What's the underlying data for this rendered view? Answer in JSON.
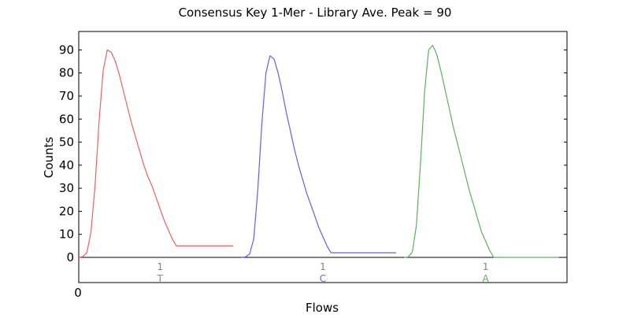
{
  "chart_data": {
    "type": "line",
    "title": "Consensus Key 1-Mer - Library Ave. Peak = 90",
    "xlabel": "Flows",
    "ylabel": "Counts",
    "x_tick_label": "0",
    "ylim": [
      0,
      98
    ],
    "yticks": [
      0,
      10,
      20,
      30,
      40,
      50,
      60,
      70,
      80,
      90
    ],
    "grid": false,
    "legend": "none",
    "flows": [
      {
        "count": "1",
        "base": "T",
        "color": "#f06060"
      },
      {
        "count": "1",
        "base": "C",
        "color": "#6060f0"
      },
      {
        "count": "1",
        "base": "A",
        "color": "#60b060"
      }
    ],
    "series": [
      {
        "color": "#f06060",
        "x": [
          0.0,
          0.05,
          0.1,
          0.15,
          0.2,
          0.25,
          0.3,
          0.35,
          0.4,
          0.45,
          0.5,
          0.55,
          0.6,
          0.65,
          0.7,
          0.75,
          0.8,
          0.85,
          0.9,
          0.95,
          1.0,
          1.05,
          1.1,
          1.15,
          1.2,
          1.25,
          1.3,
          1.35,
          1.4,
          1.45,
          1.5,
          1.55,
          1.6,
          1.65,
          1.7,
          1.75,
          1.8,
          1.85,
          1.9
        ],
        "y": [
          0,
          0.3,
          2,
          11,
          31,
          59,
          81,
          90,
          89,
          85,
          79,
          72,
          65,
          58,
          52,
          46,
          40,
          35,
          31,
          26,
          21,
          16,
          12,
          8,
          5,
          5,
          5,
          5,
          5,
          5,
          5,
          5,
          5,
          5,
          5,
          5,
          5,
          5,
          5
        ]
      },
      {
        "color": "#6060f0",
        "x": [
          2.0,
          2.05,
          2.1,
          2.15,
          2.2,
          2.25,
          2.3,
          2.35,
          2.4,
          2.45,
          2.5,
          2.55,
          2.6,
          2.65,
          2.7,
          2.75,
          2.8,
          2.85,
          2.9,
          2.95,
          3.0,
          3.05,
          3.1,
          3.15,
          3.2,
          3.25,
          3.3,
          3.35,
          3.4,
          3.45,
          3.5,
          3.55,
          3.6,
          3.65,
          3.7,
          3.75,
          3.8,
          3.85,
          3.9
        ],
        "y": [
          0,
          0.2,
          1.5,
          8,
          29,
          58,
          80,
          87.5,
          86,
          80,
          72,
          63,
          55,
          47,
          40,
          34,
          28,
          23,
          18,
          13,
          9,
          5,
          2,
          2,
          2,
          2,
          2,
          2,
          2,
          2,
          2,
          2,
          2,
          2,
          2,
          2,
          2,
          2,
          2
        ]
      },
      {
        "color": "#60b060",
        "x": [
          4.0,
          4.05,
          4.1,
          4.15,
          4.2,
          4.25,
          4.3,
          4.35,
          4.4,
          4.45,
          4.5,
          4.55,
          4.6,
          4.65,
          4.7,
          4.75,
          4.8,
          4.85,
          4.9,
          4.95,
          5.0,
          5.05,
          5.1,
          5.15,
          5.2,
          5.25,
          5.3,
          5.35,
          5.4,
          5.45,
          5.5,
          5.55,
          5.6,
          5.65,
          5.7,
          5.75,
          5.8,
          5.85,
          5.9
        ],
        "y": [
          0,
          0.2,
          2.5,
          14,
          41,
          72,
          90,
          92,
          88,
          81,
          73,
          65,
          57,
          50,
          43,
          36,
          29,
          23,
          17,
          11,
          7,
          3,
          0,
          0,
          0,
          0,
          0,
          0,
          0,
          0,
          0,
          0,
          0,
          0,
          0,
          0,
          0,
          0,
          0
        ]
      }
    ]
  }
}
